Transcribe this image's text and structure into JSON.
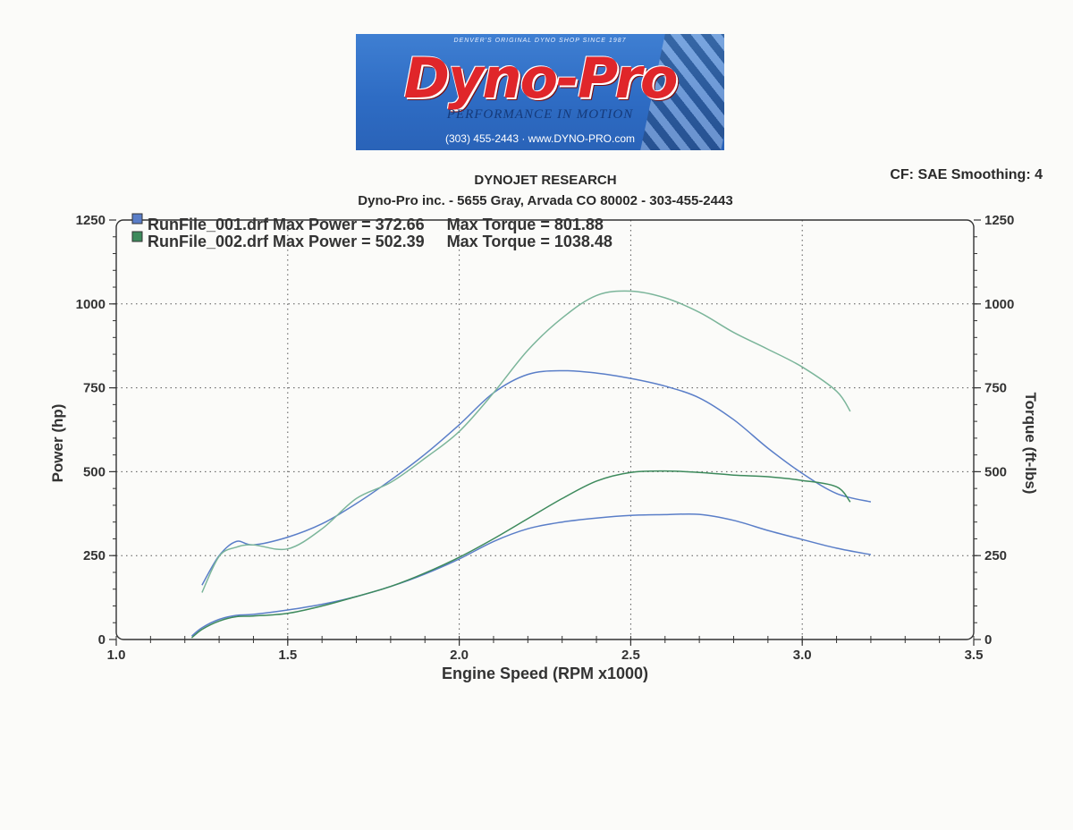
{
  "logo": {
    "tagline_top": "DENVER'S ORIGINAL DYNO SHOP SINCE 1987",
    "brand": "Dyno-Pro",
    "motto": "PERFORMANCE IN MOTION",
    "contact": "(303) 455-2443  ·  www.DYNO-PRO.com"
  },
  "header": {
    "line1": "DYNOJET RESEARCH",
    "line2": "Dyno-Pro inc. - 5655 Gray, Arvada CO 80002 - 303-455-2443",
    "cf": "CF: SAE  Smoothing: 4"
  },
  "colors": {
    "run1": "#5a7ec8",
    "run2": "#3d8a5c",
    "run2_torque": "#7bb59a",
    "grid": "#555555"
  },
  "chart_data": {
    "type": "line",
    "xlabel": "Engine Speed (RPM x1000)",
    "ylabel_left": "Power (hp)",
    "ylabel_right": "Torque (ft-lbs)",
    "xlim": [
      1.0,
      3.5
    ],
    "ylim": [
      0,
      1250
    ],
    "x_ticks": [
      "1.0",
      "1.5",
      "2.0",
      "2.5",
      "3.0",
      "3.5"
    ],
    "y_ticks": [
      "0",
      "250",
      "500",
      "750",
      "1000",
      "1250"
    ],
    "legend": [
      {
        "text": "RunFile_001.drf Max Power = 372.66     Max Torque = 801.88"
      },
      {
        "text": "RunFile_002.drf Max Power = 502.39     Max Torque = 1038.48"
      }
    ],
    "series": [
      {
        "name": "RunFile_001.drf",
        "kind": "power",
        "points": [
          [
            1.22,
            10
          ],
          [
            1.25,
            35
          ],
          [
            1.3,
            60
          ],
          [
            1.35,
            72
          ],
          [
            1.4,
            75
          ],
          [
            1.5,
            88
          ],
          [
            1.6,
            105
          ],
          [
            1.7,
            128
          ],
          [
            1.8,
            158
          ],
          [
            1.9,
            195
          ],
          [
            2.0,
            240
          ],
          [
            2.1,
            292
          ],
          [
            2.2,
            330
          ],
          [
            2.3,
            350
          ],
          [
            2.4,
            362
          ],
          [
            2.5,
            370
          ],
          [
            2.6,
            372
          ],
          [
            2.7,
            373
          ],
          [
            2.8,
            355
          ],
          [
            2.9,
            325
          ],
          [
            3.0,
            298
          ],
          [
            3.1,
            272
          ],
          [
            3.2,
            253
          ]
        ]
      },
      {
        "name": "RunFile_001.drf",
        "kind": "torque",
        "points": [
          [
            1.25,
            162
          ],
          [
            1.3,
            250
          ],
          [
            1.35,
            292
          ],
          [
            1.4,
            282
          ],
          [
            1.5,
            305
          ],
          [
            1.6,
            345
          ],
          [
            1.7,
            405
          ],
          [
            1.8,
            475
          ],
          [
            1.9,
            552
          ],
          [
            2.0,
            640
          ],
          [
            2.1,
            735
          ],
          [
            2.2,
            790
          ],
          [
            2.3,
            801
          ],
          [
            2.4,
            794
          ],
          [
            2.5,
            778
          ],
          [
            2.6,
            755
          ],
          [
            2.7,
            720
          ],
          [
            2.8,
            655
          ],
          [
            2.9,
            570
          ],
          [
            3.0,
            495
          ],
          [
            3.1,
            435
          ],
          [
            3.2,
            410
          ]
        ]
      },
      {
        "name": "RunFile_002.drf",
        "kind": "power",
        "points": [
          [
            1.22,
            5
          ],
          [
            1.25,
            30
          ],
          [
            1.3,
            55
          ],
          [
            1.35,
            68
          ],
          [
            1.4,
            70
          ],
          [
            1.5,
            78
          ],
          [
            1.6,
            100
          ],
          [
            1.7,
            128
          ],
          [
            1.8,
            158
          ],
          [
            1.9,
            198
          ],
          [
            2.0,
            245
          ],
          [
            2.1,
            300
          ],
          [
            2.2,
            360
          ],
          [
            2.3,
            420
          ],
          [
            2.4,
            472
          ],
          [
            2.5,
            498
          ],
          [
            2.6,
            502
          ],
          [
            2.7,
            498
          ],
          [
            2.8,
            490
          ],
          [
            2.9,
            485
          ],
          [
            3.0,
            474
          ],
          [
            3.1,
            455
          ],
          [
            3.14,
            410
          ]
        ]
      },
      {
        "name": "RunFile_002.drf",
        "kind": "torque",
        "points": [
          [
            1.25,
            140
          ],
          [
            1.3,
            248
          ],
          [
            1.35,
            275
          ],
          [
            1.4,
            282
          ],
          [
            1.5,
            270
          ],
          [
            1.6,
            330
          ],
          [
            1.7,
            420
          ],
          [
            1.8,
            468
          ],
          [
            1.9,
            540
          ],
          [
            2.0,
            620
          ],
          [
            2.1,
            735
          ],
          [
            2.2,
            862
          ],
          [
            2.3,
            958
          ],
          [
            2.4,
            1025
          ],
          [
            2.5,
            1038
          ],
          [
            2.6,
            1018
          ],
          [
            2.7,
            975
          ],
          [
            2.8,
            915
          ],
          [
            2.9,
            865
          ],
          [
            3.0,
            812
          ],
          [
            3.1,
            740
          ],
          [
            3.14,
            680
          ]
        ]
      }
    ]
  }
}
